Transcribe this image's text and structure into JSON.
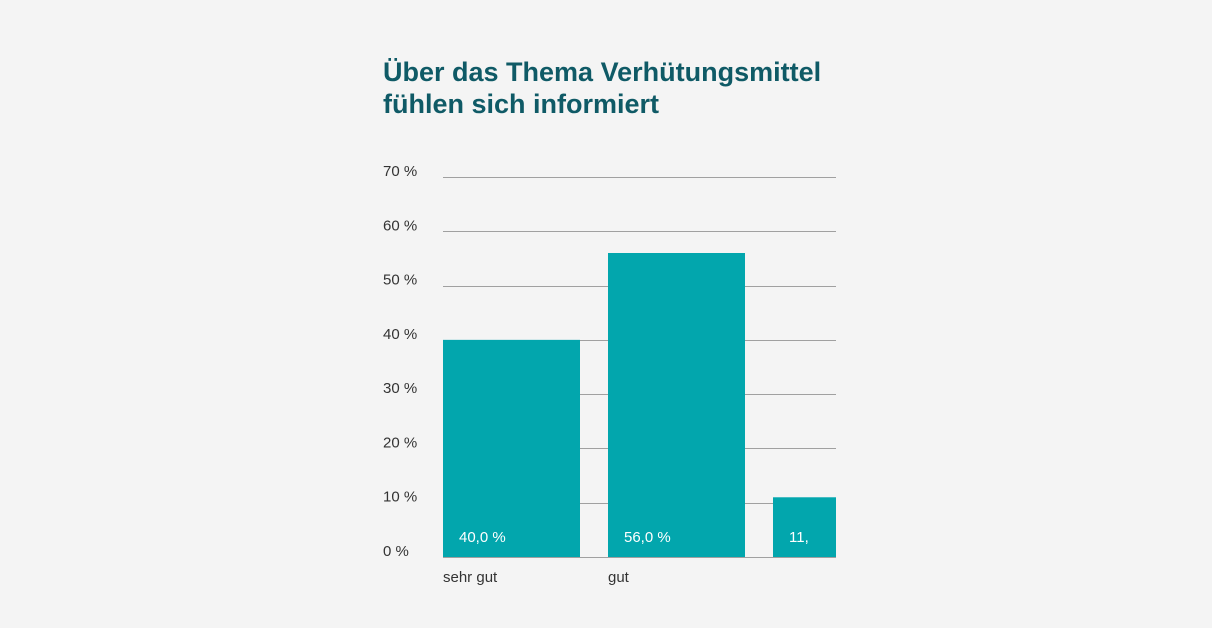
{
  "title": "Über das Thema Verhütungsmittel fühlen sich informiert",
  "colors": {
    "background": "#f4f4f4",
    "title": "#0f5a66",
    "bar": "#02a6ad",
    "grid": "#a0a0a0",
    "text": "#333333",
    "data_label": "#ffffff"
  },
  "chart_data": {
    "type": "bar",
    "title": "Über das Thema Verhütungsmittel fühlen sich informiert",
    "xlabel": "",
    "ylabel": "",
    "categories": [
      "sehr gut",
      "gut",
      ""
    ],
    "values": [
      40.0,
      56.0,
      11.0
    ],
    "data_labels": [
      "40,0 %",
      "56,0 %",
      "11,"
    ],
    "yticks": [
      "0 %",
      "10 %",
      "20 %",
      "30 %",
      "40 %",
      "50 %",
      "60 %",
      "70 %"
    ],
    "ylim": [
      0,
      70
    ],
    "grid": true,
    "legend": "none"
  }
}
